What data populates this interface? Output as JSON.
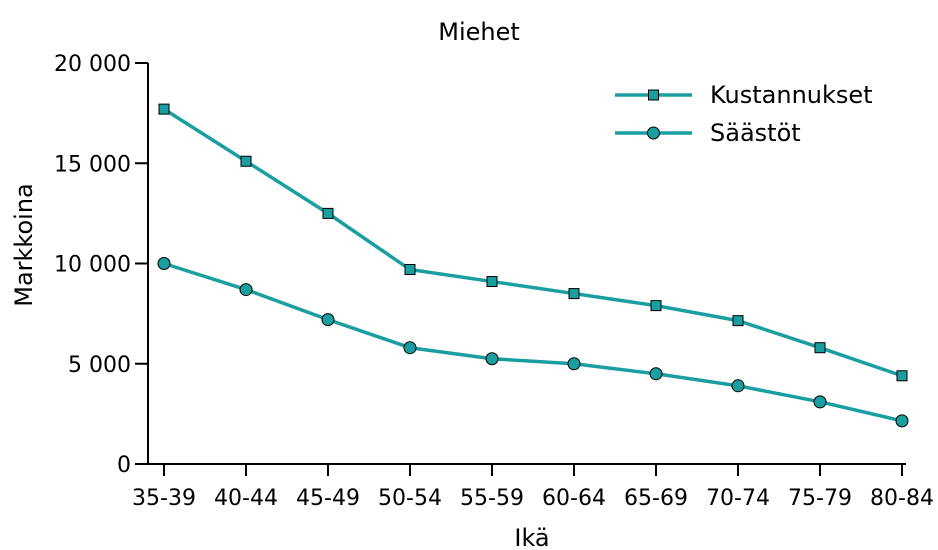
{
  "chart_data": {
    "type": "line",
    "title": "Miehet",
    "xlabel": "Ikä",
    "ylabel": "Markkoina",
    "categories": [
      "35-39",
      "40-44",
      "45-49",
      "50-54",
      "55-59",
      "60-64",
      "65-69",
      "70-74",
      "75-79",
      "80-84"
    ],
    "ylim": [
      0,
      20000
    ],
    "yticks": [
      0,
      5000,
      10000,
      15000,
      20000
    ],
    "ytick_labels": [
      "0",
      "5 000",
      "10 000",
      "15 000",
      "20 000"
    ],
    "grid": false,
    "legend_position": "top-right",
    "series": [
      {
        "name": "Kustannukset",
        "marker": "square",
        "color": "#1a9ea0",
        "values": [
          17700,
          15100,
          12500,
          9700,
          9100,
          8500,
          7900,
          7150,
          5800,
          4400
        ]
      },
      {
        "name": "Säästöt",
        "marker": "circle",
        "color": "#1a9ea0",
        "values": [
          10000,
          8700,
          7200,
          5800,
          5250,
          5000,
          4500,
          3900,
          3100,
          2150
        ]
      }
    ]
  }
}
